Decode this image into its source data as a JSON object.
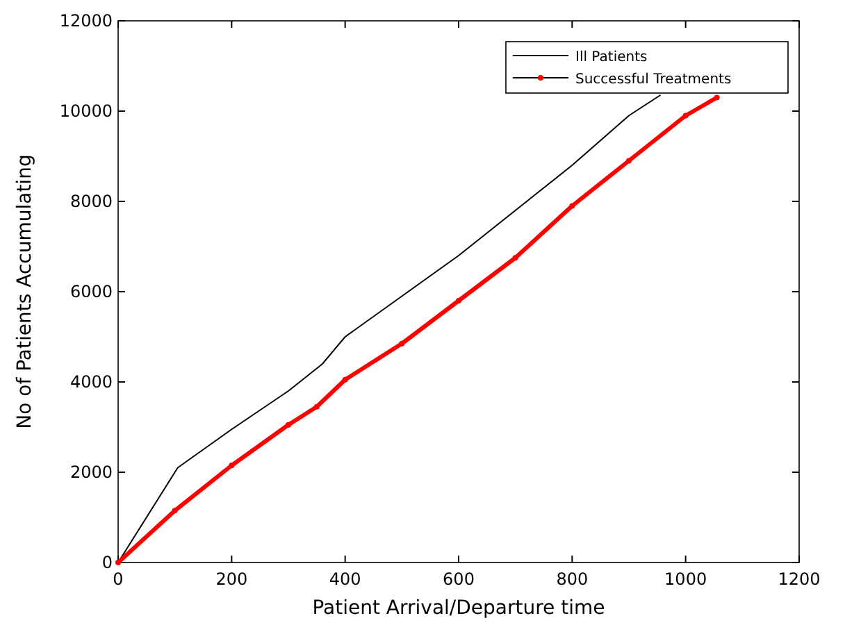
{
  "chart_data": {
    "type": "line",
    "xlabel": "Patient Arrival/Departure time",
    "ylabel": "No of Patients Accumulating",
    "xlim": [
      0,
      1200
    ],
    "xticks": [
      0,
      200,
      400,
      600,
      800,
      1000,
      1200
    ],
    "ylim": [
      0,
      12000
    ],
    "yticks": [
      0,
      2000,
      4000,
      6000,
      8000,
      10000,
      12000
    ],
    "grid": false,
    "legend": "top right",
    "series": [
      {
        "name": "Ill Patients",
        "color": "#000000",
        "marker": "none",
        "x": [
          0,
          50,
          105,
          200,
          300,
          360,
          400,
          500,
          600,
          700,
          800,
          900,
          955
        ],
        "values": [
          0,
          1000,
          2100,
          2950,
          3800,
          4400,
          5000,
          5900,
          6800,
          7800,
          8800,
          9900,
          10350
        ]
      },
      {
        "name": "Successful Treatments",
        "color": "#ff0000",
        "marker": "circle",
        "x": [
          0,
          100,
          200,
          300,
          350,
          400,
          500,
          600,
          700,
          800,
          900,
          1000,
          1055
        ],
        "values": [
          0,
          1150,
          2150,
          3050,
          3450,
          4050,
          4850,
          5800,
          6750,
          7900,
          8900,
          9900,
          10300
        ]
      }
    ]
  }
}
